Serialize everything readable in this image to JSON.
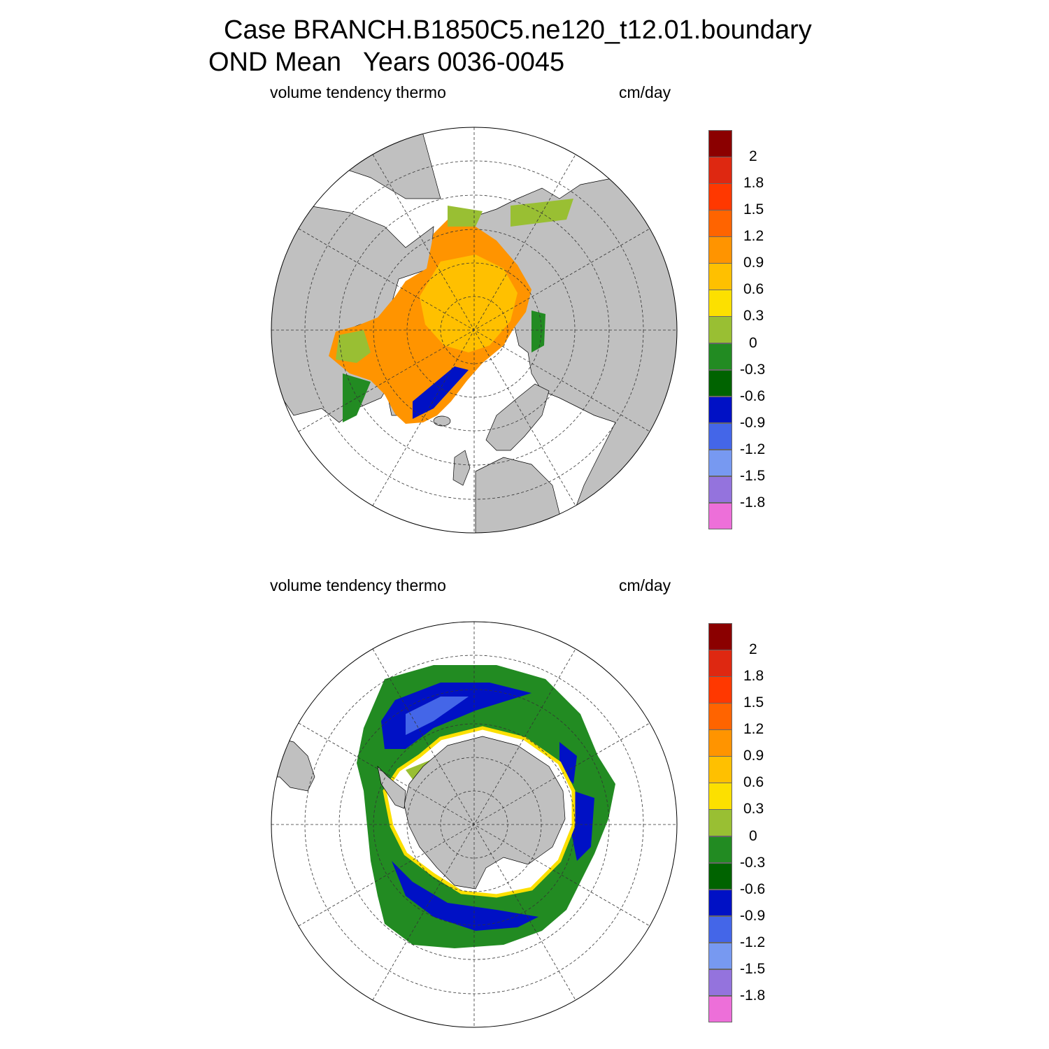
{
  "header": {
    "title_line1": "Case BRANCH.B1850C5.ne120_t12.01.boundary",
    "title_line2": "OND Mean   Years 0036-0045"
  },
  "panels": [
    {
      "id": "north",
      "label": "volume tendency thermo",
      "units": "cm/day"
    },
    {
      "id": "south",
      "label": "volume tendency thermo",
      "units": "cm/day"
    }
  ],
  "colorbar": {
    "colors": [
      "#ed6fd9",
      "#9473dd",
      "#7799f1",
      "#4466e8",
      "#0011c5",
      "#006300",
      "#228b22",
      "#99bf33",
      "#fce000",
      "#ffc000",
      "#ff9400",
      "#ff6400",
      "#ff3800",
      "#de2811",
      "#8b0000"
    ],
    "tick_labels": [
      "-1.8",
      "-1.5",
      "-1.2",
      "-0.9",
      "-0.6",
      "-0.3",
      "0",
      "0.3",
      "0.6",
      "0.9",
      "1.2",
      "1.5",
      "1.8",
      "2"
    ]
  },
  "colors": {
    "land": "#c0c0c0",
    "ocean": "#ffffff",
    "grid": "#000000"
  }
}
